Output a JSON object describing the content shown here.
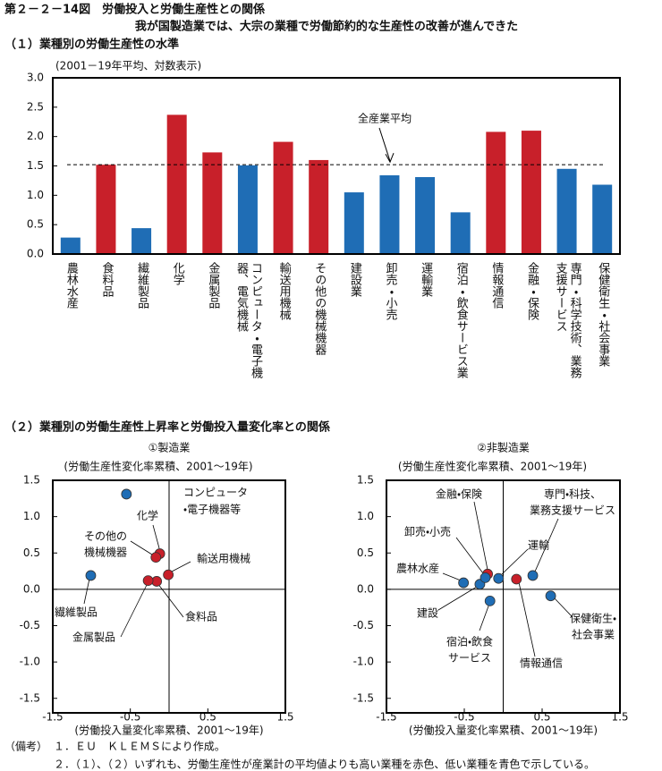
{
  "header": {
    "title": "第２－２－14図　労働投入と労働生産性との関係",
    "subtitle": "我が国製造業では、大宗の業種で労働節約的な生産性の改善が進んできた"
  },
  "sections": [
    "（１）業種別の労働生産性の水準",
    "（２）業種別の労働生産性上昇率と労働投入量変化率との関係"
  ],
  "chart_data": [
    {
      "type": "bar",
      "subtitle": "(2001－19年平均、対数表示)",
      "categories": [
        "農林水産",
        "食料品",
        "繊維製品",
        "化学",
        "金属製品",
        "コンピュータ・電子機器、電気機械",
        "輸送用機械",
        "その他の機械機器",
        "建設業",
        "卸売・小売",
        "運輸業",
        "宿泊・飲食サービス業",
        "情報通信",
        "金融・保険",
        "専門・科学技術、業務支援サービス",
        "保健衛生・社会事業"
      ],
      "values": [
        0.28,
        1.52,
        0.44,
        2.37,
        1.73,
        1.51,
        1.91,
        1.6,
        1.05,
        1.34,
        1.31,
        0.71,
        2.08,
        2.1,
        1.45,
        1.18
      ],
      "colors": [
        "#1f6db5",
        "#c8202a",
        "#1f6db5",
        "#c8202a",
        "#c8202a",
        "#1f6db5",
        "#c8202a",
        "#c8202a",
        "#1f6db5",
        "#1f6db5",
        "#1f6db5",
        "#1f6db5",
        "#c8202a",
        "#c8202a",
        "#1f6db5",
        "#1f6db5"
      ],
      "ylim": [
        0,
        3
      ],
      "yticks": [
        {
          "value": 0,
          "label": "0.0"
        },
        0.5,
        {
          "value": 1,
          "label": "1.0"
        },
        1.5,
        {
          "value": 2,
          "label": "2.0"
        },
        2.5,
        {
          "value": 3,
          "label": "3.0"
        }
      ],
      "reference": {
        "label": "全産業平均",
        "value": 1.52
      }
    },
    {
      "type": "scatter",
      "title": "①製造業",
      "ylabel": "(労働生産性変化率累積、2001～19年)",
      "xlabel": "(労働投入量変化率累積、2001～19年)",
      "xlim": [
        -1.5,
        1.5
      ],
      "ylim": [
        -1.7,
        1.5
      ],
      "xticks": [
        -1.5,
        -0.5,
        0.5,
        1.5
      ],
      "yticks": [
        1.5,
        {
          "value": 1,
          "label": "1.0"
        },
        0.5,
        {
          "value": 0,
          "label": "0.0"
        },
        -0.5,
        {
          "value": -1,
          "label": "-1.0"
        },
        -1.5
      ],
      "points": [
        {
          "label": [
            "コンピュータ",
            "・電子機器等"
          ],
          "x": -0.55,
          "y": 1.31,
          "color": "#1f6db5"
        },
        {
          "label": [
            "化学"
          ],
          "x": -0.12,
          "y": 0.49,
          "color": "#c8202a"
        },
        {
          "label": [
            "その他の",
            "機械機器"
          ],
          "x": -0.17,
          "y": 0.44,
          "color": "#c8202a"
        },
        {
          "label": [
            "輸送用機械"
          ],
          "x": -0.01,
          "y": 0.2,
          "color": "#c8202a"
        },
        {
          "label": [
            "食料品"
          ],
          "x": -0.16,
          "y": 0.11,
          "color": "#c8202a"
        },
        {
          "label": [
            "金属製品"
          ],
          "x": -0.27,
          "y": 0.12,
          "color": "#c8202a"
        },
        {
          "label": [
            "繊維製品"
          ],
          "x": -1.01,
          "y": 0.19,
          "color": "#1f6db5"
        }
      ]
    },
    {
      "type": "scatter",
      "title": "②非製造業",
      "ylabel": "(労働生産性変化率累積、2001～19年)",
      "xlabel": "(労働投入量変化率累積、2001～19年)",
      "xlim": [
        -1.5,
        1.5
      ],
      "ylim": [
        -1.7,
        1.5
      ],
      "xticks": [
        -1.5,
        -0.5,
        0.5,
        1.5
      ],
      "yticks": [
        1.5,
        {
          "value": 1,
          "label": "1.0"
        },
        0.5,
        {
          "value": 0,
          "label": "0.0"
        },
        -0.5,
        {
          "value": -1,
          "label": "-1.0"
        },
        -1.5
      ],
      "points": [
        {
          "label": [
            "農林水産"
          ],
          "x": -0.51,
          "y": 0.09,
          "color": "#1f6db5"
        },
        {
          "label": [
            "建設"
          ],
          "x": -0.3,
          "y": 0.07,
          "color": "#1f6db5"
        },
        {
          "label": [
            "金融・保険"
          ],
          "x": -0.2,
          "y": 0.21,
          "color": "#c8202a"
        },
        {
          "label": [
            "卸売・小売"
          ],
          "x": -0.23,
          "y": 0.16,
          "color": "#1f6db5"
        },
        {
          "label": [
            "運輸"
          ],
          "x": -0.06,
          "y": 0.15,
          "color": "#1f6db5"
        },
        {
          "label": [
            "宿泊・飲食",
            "サービス"
          ],
          "x": -0.17,
          "y": -0.16,
          "color": "#1f6db5"
        },
        {
          "label": [
            "情報通信"
          ],
          "x": 0.17,
          "y": 0.14,
          "color": "#c8202a"
        },
        {
          "label": [
            "専門・科技、",
            "業務支援サービス"
          ],
          "x": 0.38,
          "y": 0.19,
          "color": "#1f6db5"
        },
        {
          "label": [
            "保健衛生・",
            "社会事業"
          ],
          "x": 0.61,
          "y": -0.09,
          "color": "#1f6db5"
        }
      ]
    }
  ],
  "notes": {
    "label": "（備考）",
    "items": [
      "１．ＥＵ　ＫＬＥＭＳにより作成。",
      "２．（１）、（２）いずれも、労働生産性が産業計の平均値よりも高い業種を赤色、低い業種を青色で示している。"
    ]
  }
}
